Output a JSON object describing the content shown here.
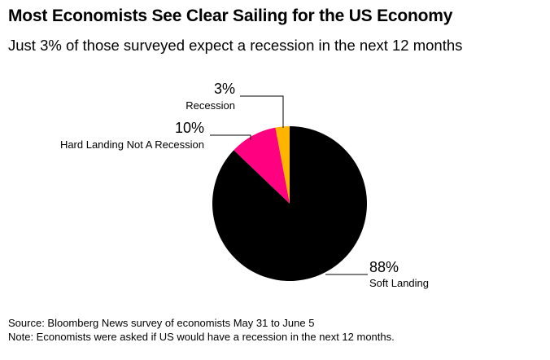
{
  "title": "Most Economists See Clear Sailing for the US Economy",
  "subtitle": "Just 3% of those surveyed expect a recession in the next 12 months",
  "chart_data": {
    "type": "pie",
    "series": [
      {
        "label": "Recession",
        "value": 3,
        "value_label": "3%",
        "color": "#ffb400"
      },
      {
        "label": "Hard Landing Not A Recession",
        "value": 10,
        "value_label": "10%",
        "color": "#ff0080"
      },
      {
        "label": "Soft Landing",
        "value": 88,
        "value_label": "88%",
        "color": "#000000"
      }
    ]
  },
  "footer": {
    "source": "Source: Bloomberg News survey of economists May 31 to June 5",
    "note": "Note: Economists were asked if US would have a recession in the next 12 months."
  }
}
